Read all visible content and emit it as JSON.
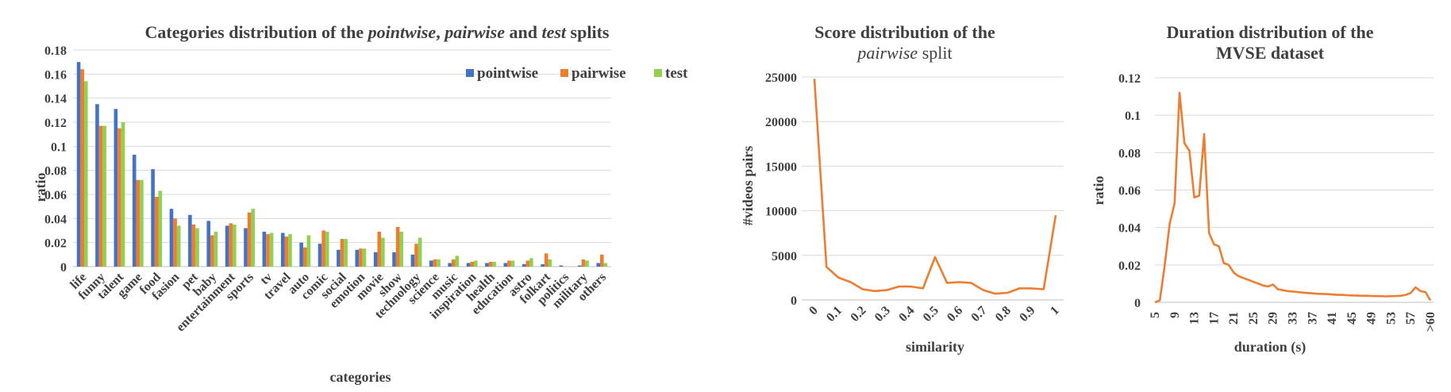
{
  "chart_data": [
    {
      "type": "bar",
      "title_parts": [
        "Categories distribution of the ",
        "pointwise",
        ", ",
        "pairwise",
        " and ",
        "test",
        " splits"
      ],
      "xlabel": "categories",
      "ylabel": "ratio",
      "ylim": [
        0,
        0.18
      ],
      "yticks": [
        "0",
        "0.02",
        "0.04",
        "0.06",
        "0.08",
        "0.1",
        "0.12",
        "0.14",
        "0.16",
        "0.18"
      ],
      "grid": true,
      "legend": "top-right",
      "categories": [
        "life",
        "funny",
        "talent",
        "game",
        "food",
        "fasion",
        "pet",
        "baby",
        "entertainment",
        "sports",
        "tv",
        "travel",
        "auto",
        "comic",
        "social",
        "emotion",
        "movie",
        "show",
        "technology",
        "science",
        "music",
        "inspiration",
        "health",
        "education",
        "astro",
        "folkart",
        "politics",
        "military",
        "others"
      ],
      "series": [
        {
          "name": "pointwise",
          "color": "#4472c4",
          "values": [
            0.17,
            0.135,
            0.131,
            0.093,
            0.081,
            0.048,
            0.043,
            0.038,
            0.034,
            0.032,
            0.029,
            0.028,
            0.02,
            0.019,
            0.014,
            0.014,
            0.012,
            0.012,
            0.01,
            0.005,
            0.003,
            0.003,
            0.003,
            0.003,
            0.002,
            0.002,
            0.001,
            0.001,
            0.003
          ]
        },
        {
          "name": "pairwise",
          "color": "#ed7d31",
          "values": [
            0.164,
            0.117,
            0.115,
            0.072,
            0.058,
            0.04,
            0.035,
            0.026,
            0.036,
            0.045,
            0.027,
            0.025,
            0.016,
            0.03,
            0.023,
            0.015,
            0.029,
            0.033,
            0.019,
            0.006,
            0.006,
            0.004,
            0.004,
            0.005,
            0.005,
            0.011,
            0.0,
            0.006,
            0.01
          ]
        },
        {
          "name": "test",
          "color": "#92d050",
          "values": [
            0.154,
            0.117,
            0.12,
            0.072,
            0.063,
            0.034,
            0.032,
            0.029,
            0.035,
            0.048,
            0.028,
            0.027,
            0.026,
            0.029,
            0.023,
            0.015,
            0.024,
            0.029,
            0.024,
            0.006,
            0.009,
            0.005,
            0.004,
            0.005,
            0.007,
            0.006,
            0.0,
            0.005,
            0.003
          ]
        }
      ]
    },
    {
      "type": "line",
      "title_line1": "Score distribution of the",
      "title_line2_parts": [
        "pairwise",
        " split"
      ],
      "xlabel": "similarity",
      "ylabel": "#videos pairs",
      "ylim": [
        0,
        25000
      ],
      "yticks": [
        "0",
        "5000",
        "10000",
        "15000",
        "20000",
        "25000"
      ],
      "xticks": [
        "0",
        "0.1",
        "0.2",
        "0.3",
        "0.4",
        "0.5",
        "0.6",
        "0.7",
        "0.8",
        "0.9",
        "1"
      ],
      "grid": true,
      "color": "#ed7d31",
      "x": [
        0,
        0.05,
        0.1,
        0.15,
        0.2,
        0.25,
        0.3,
        0.35,
        0.4,
        0.45,
        0.5,
        0.55,
        0.6,
        0.65,
        0.7,
        0.75,
        0.8,
        0.85,
        0.9,
        0.95,
        1.0
      ],
      "y": [
        24800,
        3700,
        2500,
        2000,
        1200,
        1000,
        1100,
        1500,
        1500,
        1300,
        4800,
        1900,
        2000,
        1900,
        1100,
        700,
        800,
        1300,
        1300,
        1200,
        9500
      ]
    },
    {
      "type": "line",
      "title_line1": "Duration distribution of the",
      "title_line2": "MVSE dataset",
      "xlabel": "duration (s)",
      "ylabel": "ratio",
      "ylim": [
        0,
        0.12
      ],
      "yticks": [
        "0",
        "0.02",
        "0.04",
        "0.06",
        "0.08",
        "0.1",
        "0.12"
      ],
      "xticks": [
        "5",
        "9",
        "13",
        "17",
        "21",
        "25",
        "29",
        "33",
        "37",
        "41",
        "45",
        "49",
        "53",
        "57",
        ">60"
      ],
      "grid": true,
      "color": "#ed7d31",
      "x_labels_full": [
        "5",
        "6",
        "7",
        "8",
        "9",
        "10",
        "11",
        "12",
        "13",
        "14",
        "15",
        "16",
        "17",
        "18",
        "19",
        "20",
        "21",
        "22",
        "23",
        "24",
        "25",
        "26",
        "27",
        "28",
        "29",
        "30",
        "31",
        "32",
        "33",
        "34",
        "35",
        "36",
        "37",
        "38",
        "39",
        "40",
        "41",
        "42",
        "43",
        "44",
        "45",
        "46",
        "47",
        "48",
        "49",
        "50",
        "51",
        "52",
        "53",
        "54",
        "55",
        "56",
        "57",
        "58",
        "59",
        "60",
        ">60"
      ],
      "y": [
        0,
        0.001,
        0.02,
        0.042,
        0.053,
        0.112,
        0.085,
        0.081,
        0.056,
        0.057,
        0.09,
        0.037,
        0.031,
        0.03,
        0.021,
        0.02,
        0.016,
        0.014,
        0.013,
        0.012,
        0.011,
        0.01,
        0.009,
        0.0085,
        0.0095,
        0.007,
        0.0065,
        0.006,
        0.0058,
        0.0055,
        0.0052,
        0.005,
        0.0048,
        0.0046,
        0.0045,
        0.0044,
        0.0042,
        0.004,
        0.004,
        0.0038,
        0.0037,
        0.0036,
        0.0035,
        0.0035,
        0.0034,
        0.0033,
        0.0033,
        0.0032,
        0.0033,
        0.0034,
        0.0035,
        0.004,
        0.005,
        0.008,
        0.006,
        0.0055,
        0.001
      ]
    }
  ]
}
